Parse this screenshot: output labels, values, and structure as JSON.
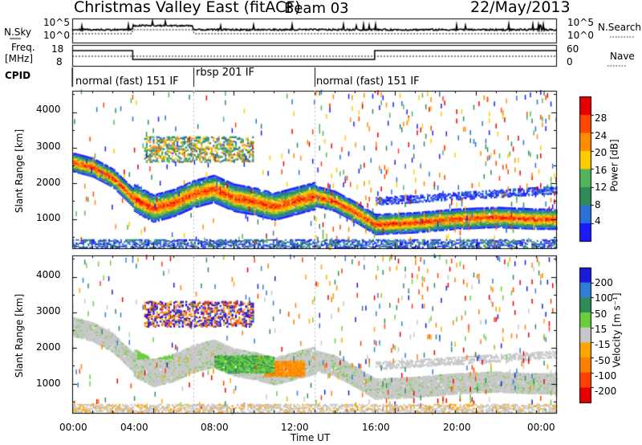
{
  "header": {
    "station": "Christmas Valley East (fitACF)",
    "beam": "Beam 03",
    "date": "22/May/2013"
  },
  "sky_panel": {
    "left_label": "N.Sky",
    "right_label": "N.Search",
    "tick_top": "10^5",
    "tick_bottom": "10^0"
  },
  "freq_panel": {
    "left_label_1": "Freq.",
    "left_label_2": "[MHz]",
    "right_label": "Nave",
    "left_ticks": [
      "18",
      "8"
    ],
    "right_ticks": [
      "60",
      "0"
    ]
  },
  "cpid_panel": {
    "label": "CPID",
    "segments": [
      {
        "label": "normal (fast) 151 IF",
        "start_h": 0,
        "end_h": 6
      },
      {
        "label": "rbsp 201 IF",
        "start_h": 6,
        "end_h": 12
      },
      {
        "label": "normal (fast) 151 IF",
        "start_h": 12,
        "end_h": 24
      }
    ]
  },
  "chart_data": [
    {
      "type": "heatmap",
      "name": "power",
      "xlabel": "Time UT",
      "ylabel": "Slant Range [km]",
      "xlim": [
        0,
        24
      ],
      "ylim": [
        180,
        4600
      ],
      "x_ticks": [
        "00:00",
        "04:00",
        "08:00",
        "12:00",
        "16:00",
        "20:00",
        "00:00"
      ],
      "y_ticks": [
        "1000",
        "2000",
        "3000",
        "4000"
      ],
      "colorbar": {
        "label": "Power [dB]",
        "ticks": [
          "4",
          "8",
          "12",
          "16",
          "20",
          "24",
          "28"
        ],
        "colors": [
          "#1a1aff",
          "#2b6fd8",
          "#2e8b57",
          "#53b35b",
          "#ffcc00",
          "#ff8c00",
          "#ff4500",
          "#e60000"
        ]
      },
      "features": [
        {
          "desc": "echo band",
          "points": [
            [
              0,
              2600
            ],
            [
              1,
              2450
            ],
            [
              2,
              2150
            ],
            [
              3,
              1600
            ],
            [
              4,
              1300
            ],
            [
              5,
              1450
            ],
            [
              6,
              1700
            ],
            [
              7,
              1850
            ],
            [
              8,
              1600
            ],
            [
              9,
              1500
            ],
            [
              10,
              1350
            ],
            [
              11,
              1500
            ],
            [
              12,
              1650
            ],
            [
              13,
              1500
            ],
            [
              14,
              1200
            ],
            [
              15,
              850
            ],
            [
              17,
              900
            ],
            [
              19,
              1000
            ],
            [
              21,
              1050
            ],
            [
              23,
              1000
            ]
          ]
        }
      ]
    },
    {
      "type": "heatmap",
      "name": "velocity",
      "xlabel": "Time UT",
      "ylabel": "Slant Range [km]",
      "xlim": [
        0,
        24
      ],
      "ylim": [
        180,
        4600
      ],
      "x_ticks": [
        "00:00",
        "04:00",
        "08:00",
        "12:00",
        "16:00",
        "20:00",
        "00:00"
      ],
      "y_ticks": [
        "1000",
        "2000",
        "3000",
        "4000"
      ],
      "colorbar": {
        "label": "Velocity [m s⁻¹]",
        "ticks": [
          "200",
          "100",
          "50",
          "15",
          "-15",
          "-50",
          "-100",
          "-200"
        ],
        "colors": [
          "#1a1ad9",
          "#2f7ed8",
          "#2e8b57",
          "#6acd3c",
          "#c8c8c8",
          "#ffa500",
          "#ff7f00",
          "#ff4000",
          "#e60000"
        ]
      }
    }
  ]
}
